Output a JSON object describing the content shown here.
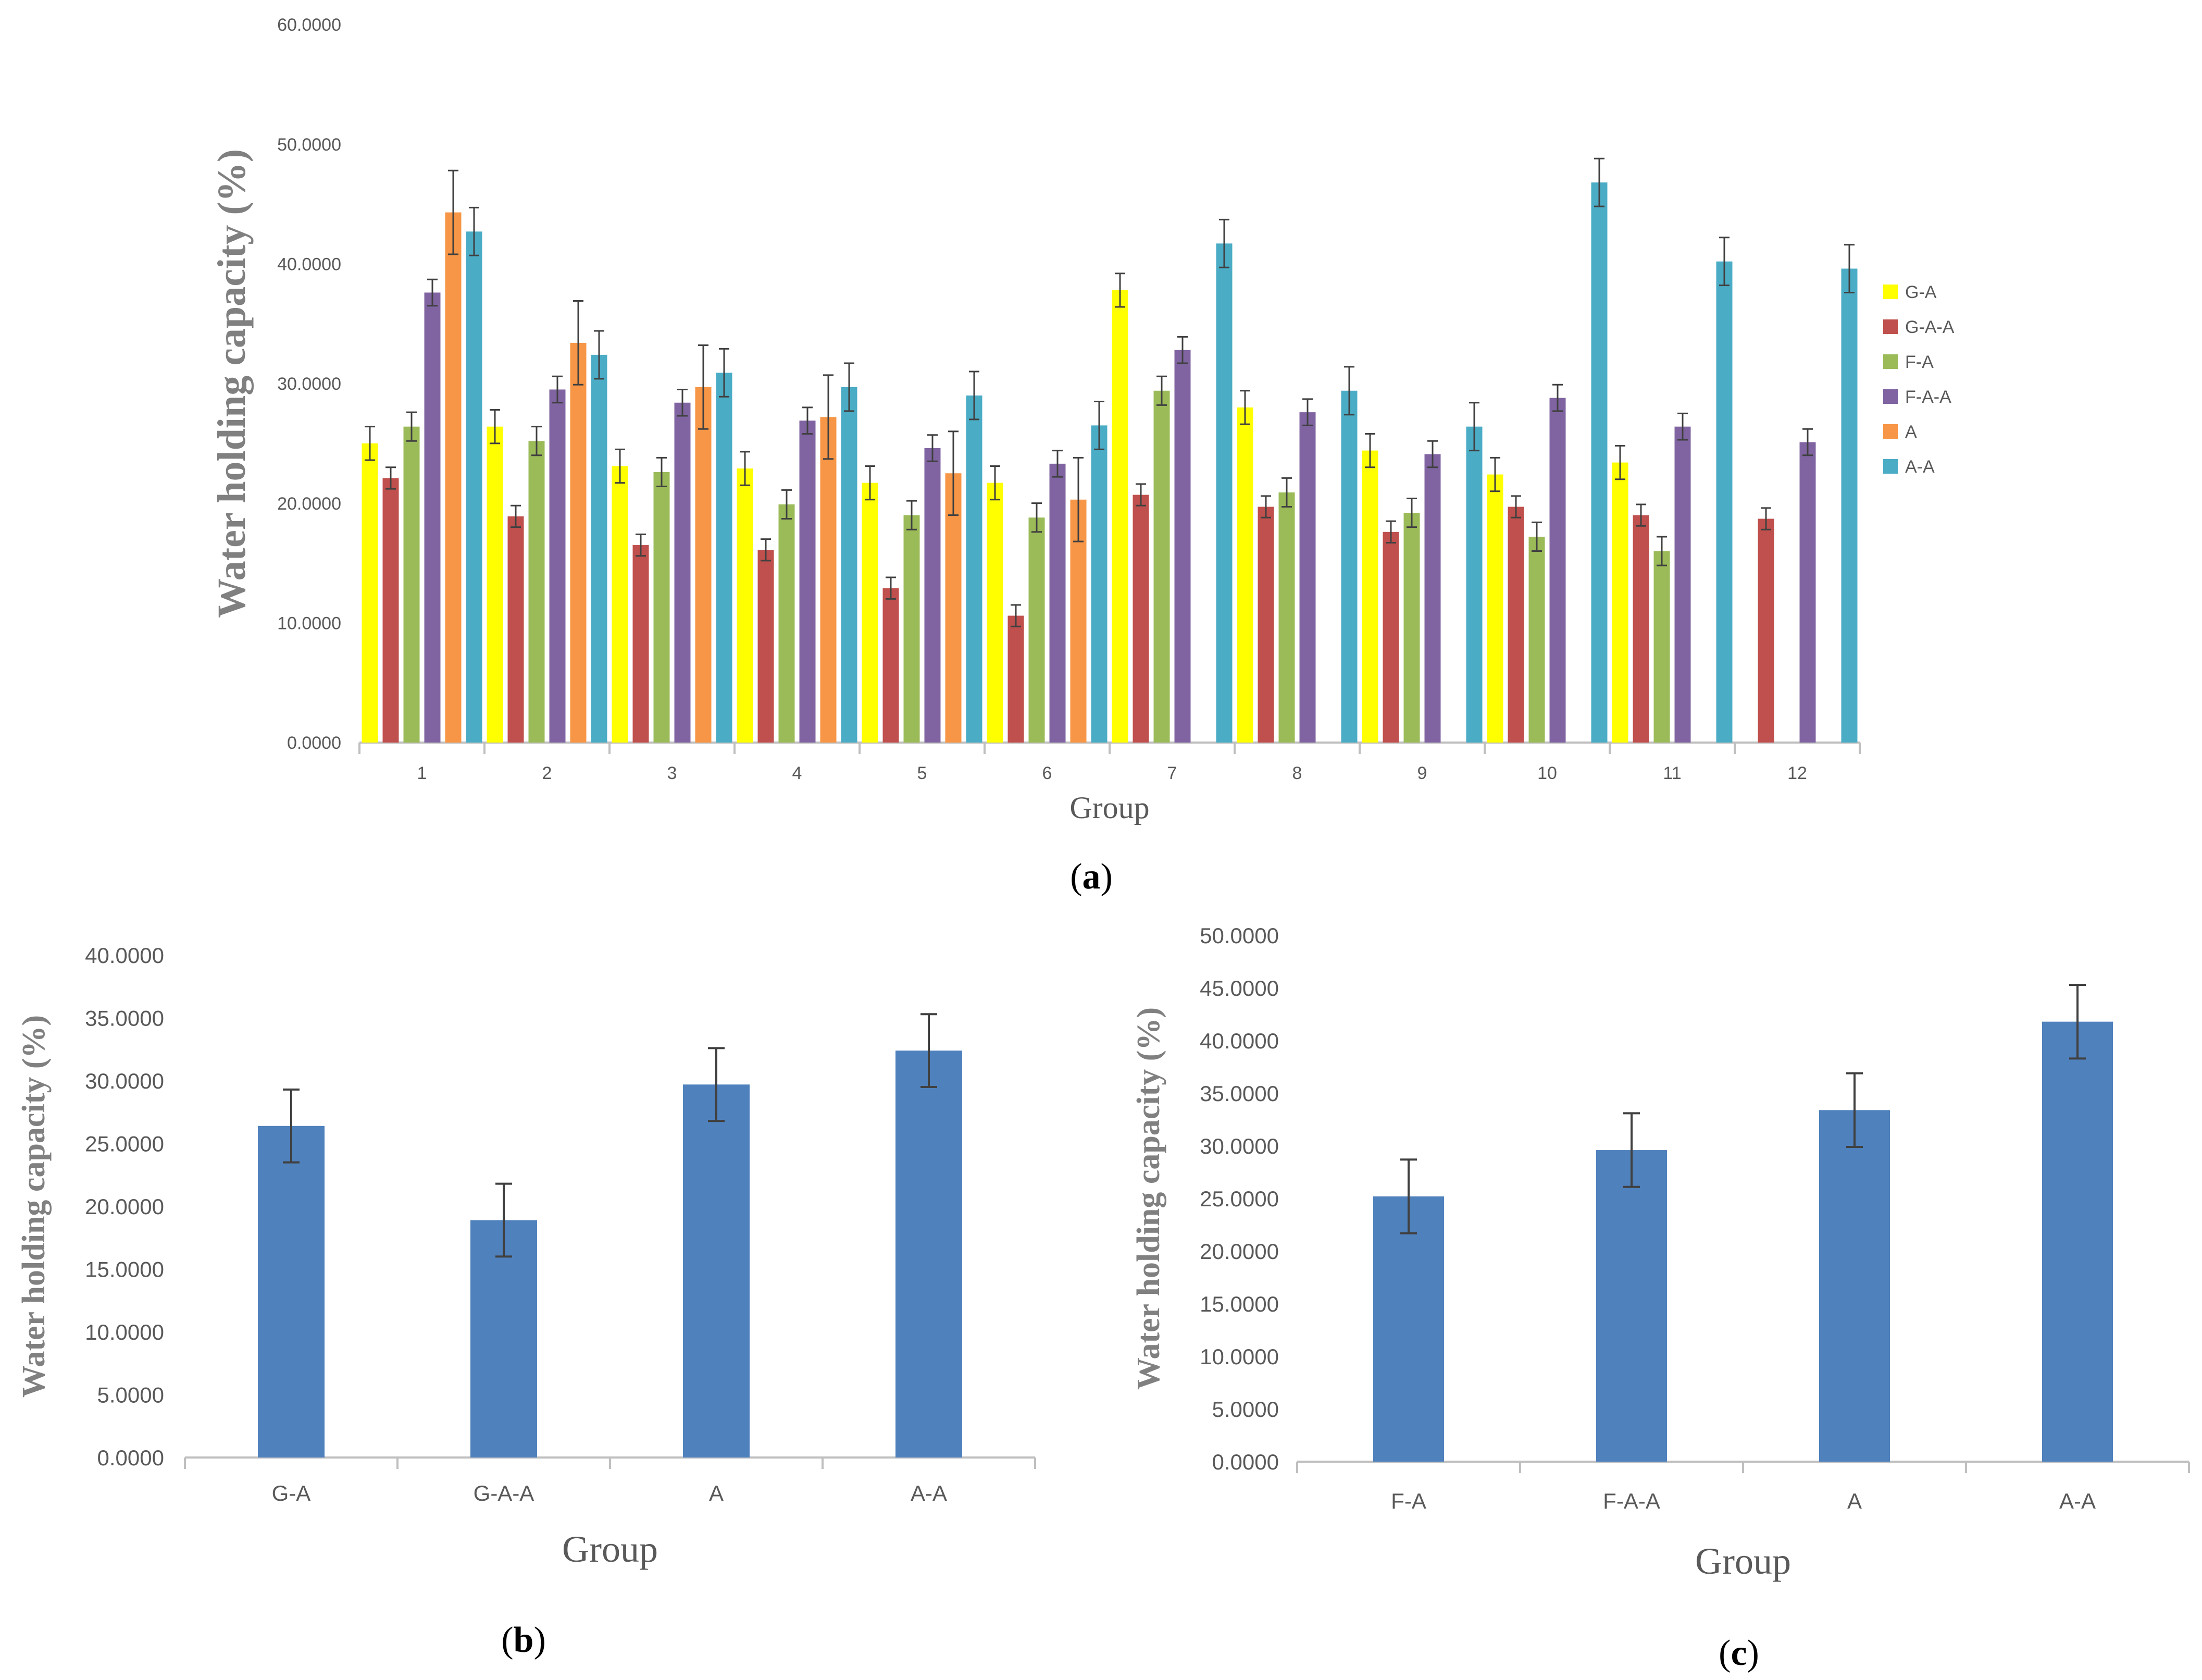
{
  "colors": {
    "axis": "#bfbfbf",
    "tick_text": "#595959",
    "error_bar": "#404040",
    "single_series": "#4f81bd"
  },
  "chart_data": [
    {
      "panel": "(a)",
      "panel_letter": "a",
      "type": "bar",
      "title": "",
      "xlabel": "Group",
      "ylabel": "Water holding capacity (%)",
      "ylim": [
        0,
        60
      ],
      "yticks": [
        "0.0000",
        "10.0000",
        "20.0000",
        "30.0000",
        "40.0000",
        "50.0000",
        "60.0000"
      ],
      "categories": [
        "1",
        "2",
        "3",
        "4",
        "5",
        "6",
        "7",
        "8",
        "9",
        "10",
        "11",
        "12"
      ],
      "legend_position": "right",
      "series": [
        {
          "name": "G-A",
          "color": "#ffff00",
          "values": [
            25.0,
            26.4,
            23.1,
            22.9,
            21.7,
            21.7,
            37.8,
            28.0,
            24.4,
            22.4,
            23.4,
            null
          ],
          "errors": [
            1.4,
            1.4,
            1.4,
            1.4,
            1.4,
            1.4,
            1.4,
            1.4,
            1.4,
            1.4,
            1.4,
            null
          ]
        },
        {
          "name": "G-A-A",
          "color": "#c0504d",
          "values": [
            22.1,
            18.9,
            16.5,
            16.1,
            12.9,
            10.6,
            20.7,
            19.7,
            17.6,
            19.7,
            19.0,
            18.7
          ],
          "errors": [
            0.9,
            0.9,
            0.9,
            0.9,
            0.9,
            0.9,
            0.9,
            0.9,
            0.9,
            0.9,
            0.9,
            0.9
          ]
        },
        {
          "name": "F-A",
          "color": "#9bbb59",
          "values": [
            26.4,
            25.2,
            22.6,
            19.9,
            19.0,
            18.8,
            29.4,
            20.9,
            19.2,
            17.2,
            16.0,
            null
          ],
          "errors": [
            1.2,
            1.2,
            1.2,
            1.2,
            1.2,
            1.2,
            1.2,
            1.2,
            1.2,
            1.2,
            1.2,
            null
          ]
        },
        {
          "name": "F-A-A",
          "color": "#8064a2",
          "values": [
            37.6,
            29.5,
            28.4,
            26.9,
            24.6,
            23.3,
            32.8,
            27.6,
            24.1,
            28.8,
            26.4,
            25.1
          ],
          "errors": [
            1.1,
            1.1,
            1.1,
            1.1,
            1.1,
            1.1,
            1.1,
            1.1,
            1.1,
            1.1,
            1.1,
            1.1
          ]
        },
        {
          "name": "A",
          "color": "#f79646",
          "values": [
            44.3,
            33.4,
            29.7,
            27.2,
            22.5,
            20.3,
            null,
            null,
            null,
            null,
            null,
            null
          ],
          "errors": [
            3.5,
            3.5,
            3.5,
            3.5,
            3.5,
            3.5,
            null,
            null,
            null,
            null,
            null,
            null
          ]
        },
        {
          "name": "A-A",
          "color": "#4bacc6",
          "values": [
            42.7,
            32.4,
            30.9,
            29.7,
            29.0,
            26.5,
            41.7,
            29.4,
            26.4,
            46.8,
            40.2,
            39.6
          ],
          "errors": [
            2.0,
            2.0,
            2.0,
            2.0,
            2.0,
            2.0,
            2.0,
            2.0,
            2.0,
            2.0,
            2.0,
            2.0
          ]
        }
      ]
    },
    {
      "panel": "(b)",
      "panel_letter": "b",
      "type": "bar",
      "title": "",
      "xlabel": "Group",
      "ylabel": "Water holding capacity (%)",
      "ylim": [
        0,
        40
      ],
      "yticks": [
        "0.0000",
        "5.0000",
        "10.0000",
        "15.0000",
        "20.0000",
        "25.0000",
        "30.0000",
        "35.0000",
        "40.0000"
      ],
      "categories": [
        "G-A",
        "G-A-A",
        "A",
        "A-A"
      ],
      "series": [
        {
          "name": "Water holding capacity",
          "color": "#4f81bd",
          "values": [
            26.4,
            18.9,
            29.7,
            32.4
          ],
          "errors": [
            2.9,
            2.9,
            2.9,
            2.9
          ]
        }
      ]
    },
    {
      "panel": "(c)",
      "panel_letter": "c",
      "type": "bar",
      "title": "",
      "xlabel": "Group",
      "ylabel": "Water holding capacity (%)",
      "ylim": [
        0,
        50
      ],
      "yticks": [
        "0.0000",
        "5.0000",
        "10.0000",
        "15.0000",
        "20.0000",
        "25.0000",
        "30.0000",
        "35.0000",
        "40.0000",
        "45.0000",
        "50.0000"
      ],
      "categories": [
        "F-A",
        "F-A-A",
        "A",
        "A-A"
      ],
      "series": [
        {
          "name": "Water holding capacity",
          "color": "#4f81bd",
          "values": [
            25.2,
            29.6,
            33.4,
            41.8
          ],
          "errors": [
            3.5,
            3.5,
            3.5,
            3.5
          ]
        }
      ]
    }
  ]
}
